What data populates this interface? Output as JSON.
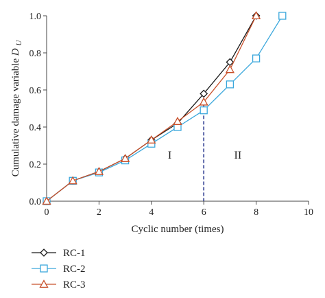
{
  "chart_data": {
    "type": "line",
    "xlabel": "Cyclic number (times)",
    "ylabel": "Cumulative damage variable",
    "ylabel_symbol": "D",
    "ylabel_subscript": "U",
    "xlim": [
      0,
      10
    ],
    "ylim": [
      0,
      1.0
    ],
    "x_ticks": [
      "0",
      "2",
      "4",
      "6",
      "8",
      "10"
    ],
    "y_ticks": [
      "0.0",
      "0.2",
      "0.4",
      "0.6",
      "0.8",
      "1.0"
    ],
    "grid": false,
    "legend_position": "bottom-left",
    "regions": [
      {
        "label": "I",
        "x": 4.7,
        "y": 0.23
      },
      {
        "label": "II",
        "x": 7.3,
        "y": 0.23
      }
    ],
    "divider": {
      "x": 6,
      "y_top": 0.58,
      "color": "#2b3a8f",
      "style": "dashed"
    },
    "series": [
      {
        "name": "RC-1",
        "marker": "diamond",
        "color": "#1a1a1a",
        "x": [
          0,
          1,
          2,
          3,
          4,
          5,
          6,
          7,
          8
        ],
        "y": [
          0.0,
          0.11,
          0.16,
          0.23,
          0.33,
          0.42,
          0.58,
          0.75,
          1.0
        ]
      },
      {
        "name": "RC-2",
        "marker": "square",
        "color": "#3aa7dc",
        "x": [
          0,
          1,
          2,
          3,
          4,
          5,
          6,
          7,
          8,
          9
        ],
        "y": [
          0.0,
          0.11,
          0.155,
          0.22,
          0.31,
          0.4,
          0.49,
          0.63,
          0.77,
          1.0
        ]
      },
      {
        "name": "RC-3",
        "marker": "triangle",
        "color": "#c8502a",
        "x": [
          0,
          1,
          2,
          3,
          4,
          5,
          6,
          7,
          8
        ],
        "y": [
          0.0,
          0.11,
          0.16,
          0.23,
          0.33,
          0.43,
          0.535,
          0.71,
          1.0
        ]
      }
    ]
  }
}
